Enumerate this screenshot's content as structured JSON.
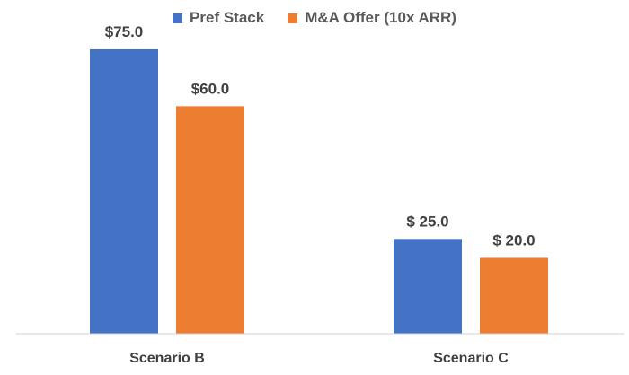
{
  "chart_data": {
    "type": "bar",
    "categories": [
      "Scenario B",
      "Scenario C"
    ],
    "series": [
      {
        "name": "Pref Stack",
        "values": [
          75.0,
          25.0
        ],
        "labels": [
          "$75.0",
          "$ 25.0"
        ],
        "color": "#4472C4"
      },
      {
        "name": "M&A Offer (10x ARR)",
        "values": [
          60.0,
          20.0
        ],
        "labels": [
          "$60.0",
          "$ 20.0"
        ],
        "color": "#ED7D31"
      }
    ],
    "ylim": [
      0,
      88
    ],
    "grid": false,
    "legend_position": "top"
  }
}
